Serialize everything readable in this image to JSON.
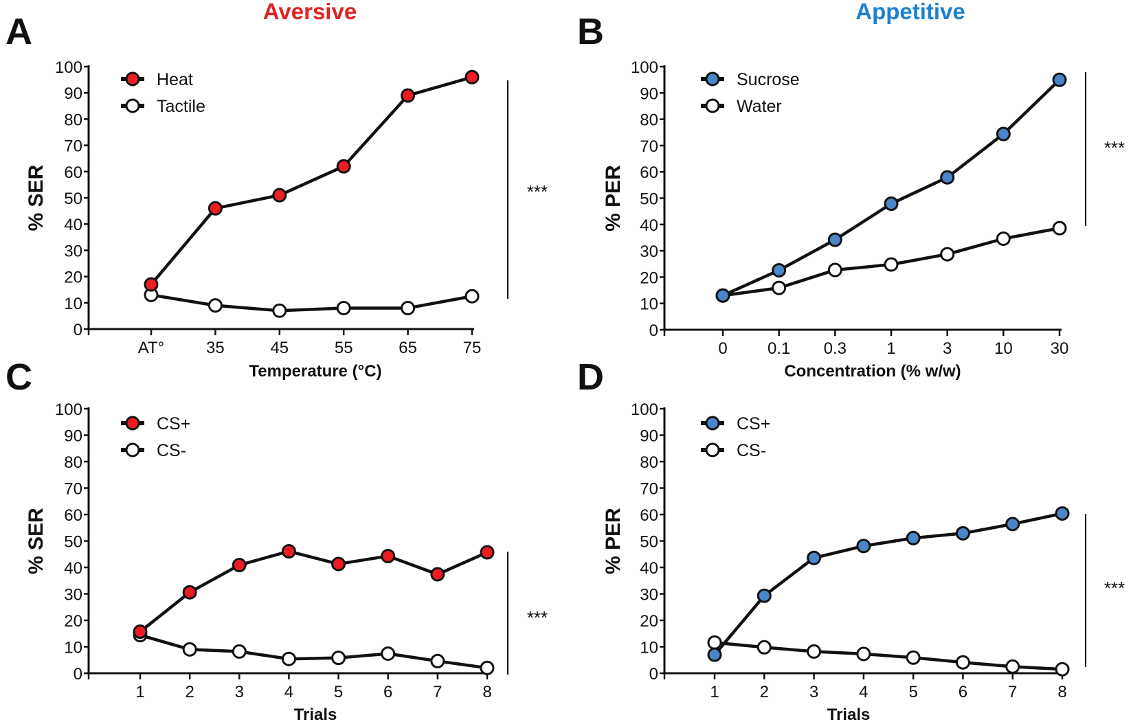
{
  "colors": {
    "aversive": "#ED1C24",
    "appetitive": "#4A86C8",
    "aversive_title": "#E02222",
    "appetitive_title": "#1A82D0",
    "open": "#FFFFFF"
  },
  "titles": {
    "aversive": "Aversive",
    "appetitive": "Appetitive"
  },
  "chart_data": [
    {
      "panel": "A",
      "type": "line",
      "xlabel": "Temperature (°C)",
      "ylabel": "% SER",
      "categories": [
        "AT°",
        "35",
        "45",
        "55",
        "65",
        "75"
      ],
      "ylim": [
        0,
        100
      ],
      "yticks": [
        0,
        10,
        20,
        30,
        40,
        50,
        60,
        70,
        80,
        90,
        100
      ],
      "legend": "top-left",
      "grid": false,
      "significance": "***",
      "series": [
        {
          "name": "Heat",
          "fill": "aversive",
          "values": [
            17,
            46,
            51,
            62,
            89,
            96
          ]
        },
        {
          "name": "Tactile",
          "fill": "open",
          "values": [
            13,
            9,
            7,
            8,
            8,
            12.5
          ]
        }
      ]
    },
    {
      "panel": "B",
      "type": "line",
      "xlabel": "Concentration (% w/w)",
      "ylabel": "% PER",
      "categories": [
        "0",
        "0.1",
        "0.3",
        "1",
        "3",
        "10",
        "30"
      ],
      "ylim": [
        0,
        100
      ],
      "yticks": [
        0,
        10,
        20,
        30,
        40,
        50,
        60,
        70,
        80,
        90,
        100
      ],
      "legend": "top-left",
      "grid": false,
      "significance": "***",
      "series": [
        {
          "name": "Sucrose",
          "fill": "appetitive",
          "values": [
            13,
            22.6,
            34.2,
            47.9,
            57.9,
            74.4,
            95
          ]
        },
        {
          "name": "Water",
          "fill": "open",
          "values": [
            13,
            15.9,
            22.7,
            24.8,
            28.7,
            34.6,
            38.6
          ]
        }
      ]
    },
    {
      "panel": "C",
      "type": "line",
      "xlabel": "Trials",
      "ylabel": "% SER",
      "categories": [
        "1",
        "2",
        "3",
        "4",
        "5",
        "6",
        "7",
        "8"
      ],
      "ylim": [
        0,
        100
      ],
      "yticks": [
        0,
        10,
        20,
        30,
        40,
        50,
        60,
        70,
        80,
        90,
        100
      ],
      "legend": "top-left",
      "grid": false,
      "significance": "***",
      "series": [
        {
          "name": "CS+",
          "fill": "aversive",
          "values": [
            15.7,
            30.6,
            40.9,
            46.1,
            41.3,
            44.3,
            37.4,
            45.7
          ]
        },
        {
          "name": "CS-",
          "fill": "open",
          "values": [
            14.4,
            9,
            8.2,
            5.4,
            5.8,
            7.4,
            4.6,
            2
          ]
        }
      ]
    },
    {
      "panel": "D",
      "type": "line",
      "xlabel": "Trials",
      "ylabel": "% PER",
      "categories": [
        "1",
        "2",
        "3",
        "4",
        "5",
        "6",
        "7",
        "8"
      ],
      "ylim": [
        0,
        100
      ],
      "yticks": [
        0,
        10,
        20,
        30,
        40,
        50,
        60,
        70,
        80,
        90,
        100
      ],
      "legend": "top-left",
      "grid": false,
      "significance": "***",
      "series": [
        {
          "name": "CS+",
          "fill": "appetitive",
          "values": [
            7,
            29.3,
            43.6,
            48.1,
            51.1,
            52.9,
            56.4,
            60.4
          ]
        },
        {
          "name": "CS-",
          "fill": "open",
          "values": [
            11.6,
            9.8,
            8.2,
            7.3,
            5.9,
            4.1,
            2.5,
            1.5
          ]
        }
      ]
    }
  ]
}
